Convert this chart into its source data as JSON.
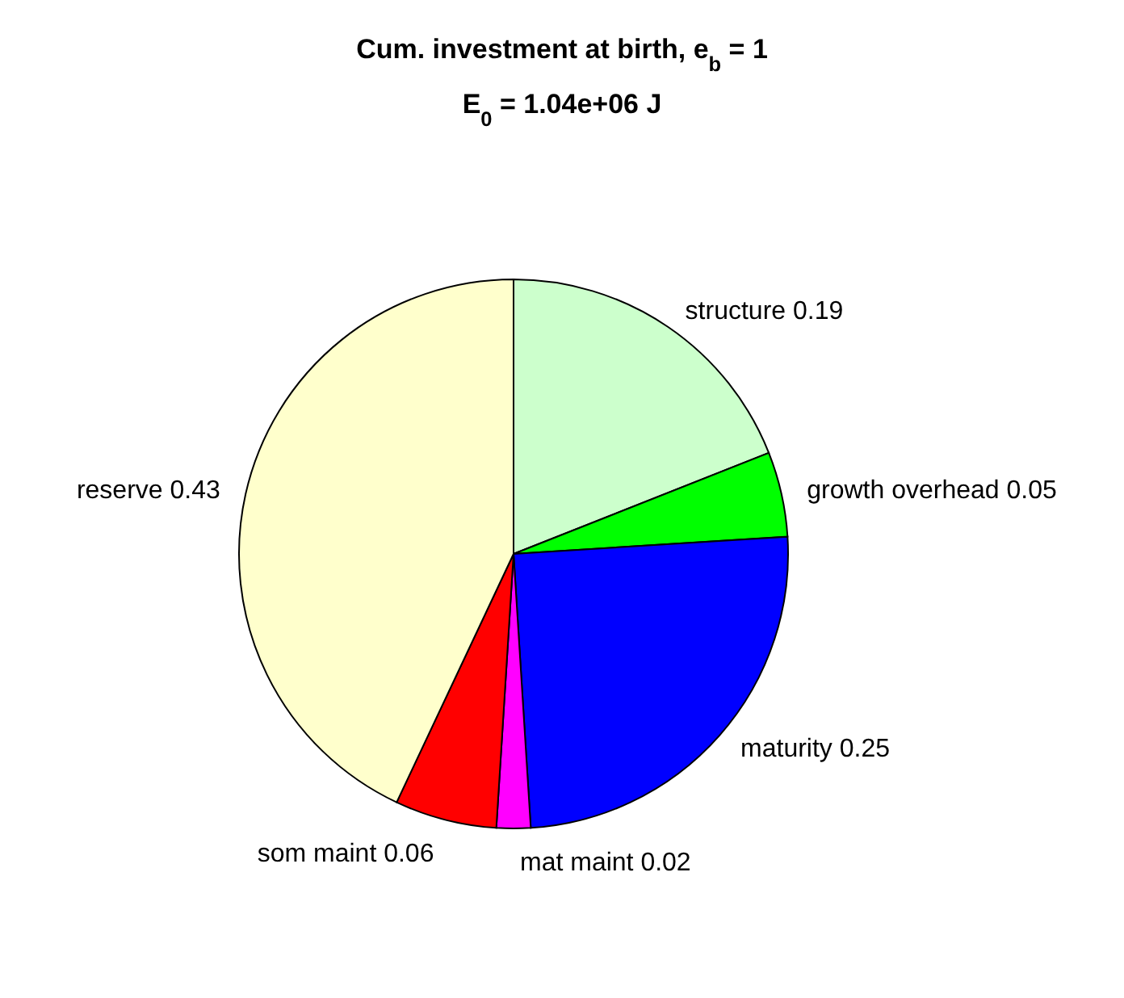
{
  "chart_data": {
    "type": "pie",
    "title": "Cum. investment at birth, e$_{b}$ = 1",
    "subtitle": "E$_{0}$ = 1.04e+06 J",
    "categories": [
      "structure 0.19",
      "growth overhead 0.05",
      "maturity 0.25",
      "mat maint 0.02",
      "som maint 0.06",
      "reserve 0.43"
    ],
    "values": [
      19,
      5,
      25,
      2,
      6,
      43
    ],
    "colors": [
      "#ccffcc",
      "#00ff00",
      "#0000ff",
      "#ff00ff",
      "#ff0000",
      "#ffffcc"
    ]
  }
}
